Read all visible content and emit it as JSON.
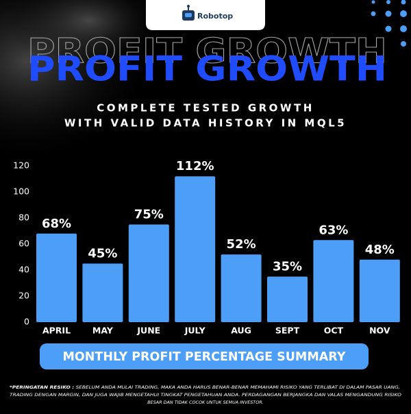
{
  "brand": "Robotop",
  "chart_data": {
    "type": "bar",
    "title": "PROFIT GROWTH",
    "subtitle": [
      "COMPLETE TESTED GROWTH",
      "WITH VALID DATA HISTORY IN MQL5"
    ],
    "categories": [
      "APRIL",
      "MAY",
      "JUNE",
      "JULY",
      "AUG",
      "SEPT",
      "OCT",
      "NOV"
    ],
    "values": [
      68,
      45,
      75,
      112,
      52,
      35,
      63,
      48
    ],
    "value_labels": [
      "68%",
      "45%",
      "75%",
      "112%",
      "52%",
      "35%",
      "63%",
      "48%"
    ],
    "color": "#4d9ef7",
    "ylim": [
      0,
      120
    ],
    "yticks": [
      0,
      20,
      40,
      60,
      80,
      100,
      120
    ],
    "grid": false
  },
  "banner": "MONTHLY PROFIT PERCENTAGE SUMMARY",
  "disclaimer": {
    "label": "*PERINGATAN RESIKO :",
    "lines": [
      "SEBELUM ANDA MULAI TRADING, MAKA ANDA HARUS BENAR-BENAR MEMAHAMI RISIKO YANG TERLIBAT DI DALAM PASAR UANG,",
      "TRADING DENGAN MARGIN, DAN JUGA WAJIB MENGETAHUI TINGKAT PENGETAHUAN ANDA. PERDAGANGAN BERJANGKA DAN VALAS MENGANDUNG RISIKO",
      "BESAR DAN TIDAK COCOK UNTUK SEMUA INVESTOR."
    ]
  }
}
